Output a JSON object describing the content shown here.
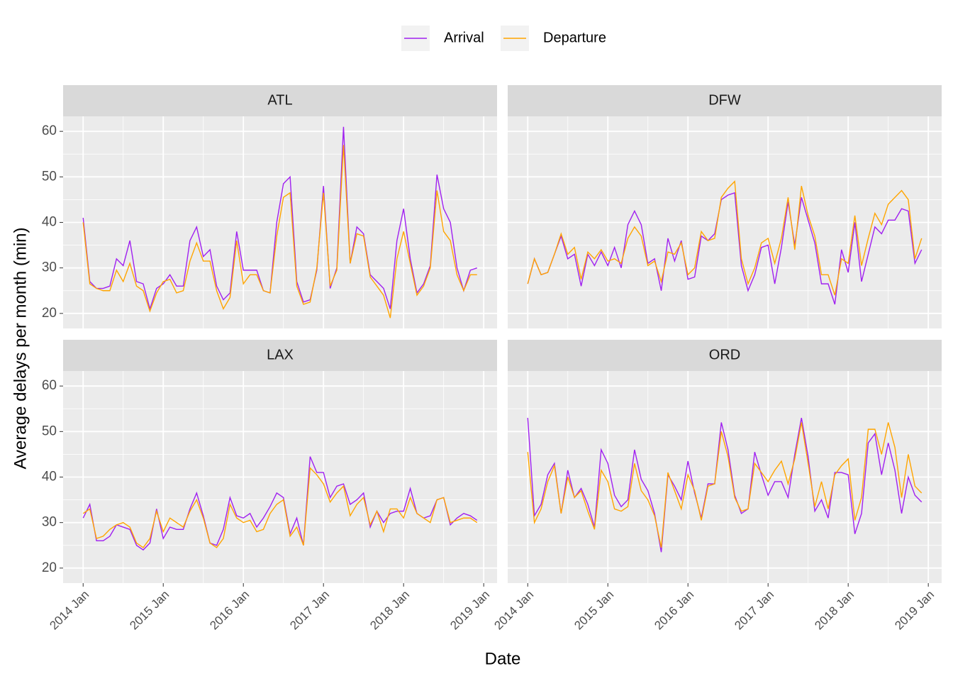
{
  "chart_data": {
    "type": "line",
    "xlabel": "Date",
    "ylabel": "Average delays per month (min)",
    "legend_position": "top",
    "grid": true,
    "x": [
      "2014-01",
      "2014-02",
      "2014-03",
      "2014-04",
      "2014-05",
      "2014-06",
      "2014-07",
      "2014-08",
      "2014-09",
      "2014-10",
      "2014-11",
      "2014-12",
      "2015-01",
      "2015-02",
      "2015-03",
      "2015-04",
      "2015-05",
      "2015-06",
      "2015-07",
      "2015-08",
      "2015-09",
      "2015-10",
      "2015-11",
      "2015-12",
      "2016-01",
      "2016-02",
      "2016-03",
      "2016-04",
      "2016-05",
      "2016-06",
      "2016-07",
      "2016-08",
      "2016-09",
      "2016-10",
      "2016-11",
      "2016-12",
      "2017-01",
      "2017-02",
      "2017-03",
      "2017-04",
      "2017-05",
      "2017-06",
      "2017-07",
      "2017-08",
      "2017-09",
      "2017-10",
      "2017-11",
      "2017-12",
      "2018-01",
      "2018-02",
      "2018-03",
      "2018-04",
      "2018-05",
      "2018-06",
      "2018-07",
      "2018-08",
      "2018-09",
      "2018-10",
      "2018-11",
      "2018-12"
    ],
    "xlim": [
      "2013-10",
      "2019-03"
    ],
    "xticks": [
      {
        "value": "2014-01",
        "label": "2014 Jan"
      },
      {
        "value": "2015-01",
        "label": "2015 Jan"
      },
      {
        "value": "2016-01",
        "label": "2016 Jan"
      },
      {
        "value": "2017-01",
        "label": "2017 Jan"
      },
      {
        "value": "2018-01",
        "label": "2018 Jan"
      },
      {
        "value": "2019-01",
        "label": "2019 Jan"
      }
    ],
    "minor_xticks": [
      "2014-07",
      "2015-07",
      "2016-07",
      "2017-07",
      "2018-07"
    ],
    "ylim": [
      16.7,
      63.3
    ],
    "yticks": [
      20,
      30,
      40,
      50,
      60
    ],
    "minor_yticks": [
      25,
      35,
      45,
      55
    ],
    "facets": [
      {
        "title": "ATL",
        "series": [
          {
            "name": "Arrival",
            "color": "#a020f0",
            "values": [
              41,
              27,
              25.5,
              25.5,
              26,
              32,
              30.5,
              36,
              27,
              26.5,
              21,
              25.5,
              26.5,
              28.5,
              26,
              26,
              36,
              39,
              32.5,
              34,
              26,
              23,
              24.5,
              38,
              29.5,
              29.5,
              29.5,
              25,
              24.5,
              40,
              48.5,
              50,
              27,
              22.5,
              23,
              29.5,
              48,
              25.5,
              30,
              61,
              31,
              39,
              37.5,
              28.5,
              27,
              25.5,
              21,
              36,
              43,
              32,
              24.5,
              26.5,
              30.5,
              50.5,
              43,
              40,
              30,
              25,
              29.5,
              30
            ]
          },
          {
            "name": "Departure",
            "color": "#ffa500",
            "values": [
              40,
              26.5,
              25.5,
              25,
              25,
              29.5,
              27,
              31,
              26,
              25,
              20.5,
              24.5,
              27,
              27.5,
              24.5,
              25,
              31.5,
              35.5,
              31.5,
              31.5,
              25,
              21,
              23.5,
              36,
              26.5,
              28.5,
              28.5,
              25,
              24.5,
              37,
              45.5,
              46.5,
              26,
              22,
              22.5,
              30,
              46.5,
              26,
              29.5,
              57,
              31,
              37.5,
              37,
              28,
              26,
              24,
              19,
              32,
              38,
              31,
              24,
              26,
              30,
              47,
              38,
              36,
              28.5,
              25,
              28.5,
              28.5
            ]
          }
        ]
      },
      {
        "title": "DFW",
        "series": [
          {
            "name": "Arrival",
            "color": "#a020f0",
            "values": [
              26.5,
              32,
              28.5,
              29,
              33,
              37,
              32,
              33,
              26,
              33,
              30.5,
              33.5,
              30.5,
              34.5,
              30,
              39.5,
              42.5,
              39.5,
              31,
              32,
              25,
              36.5,
              31.5,
              36,
              27.5,
              28,
              37,
              36,
              37.5,
              45,
              46,
              46.5,
              30.5,
              25,
              28.5,
              34.5,
              35,
              26.5,
              34.5,
              44.5,
              35,
              45.5,
              40.5,
              35.5,
              26.5,
              26.5,
              22,
              34,
              29,
              40,
              27,
              33,
              39,
              37.5,
              40.5,
              40.5,
              43,
              42.5,
              31,
              34
            ]
          },
          {
            "name": "Departure",
            "color": "#ffa500",
            "values": [
              26.5,
              32,
              28.5,
              29,
              33,
              37.5,
              33,
              34.5,
              27.5,
              33.5,
              32,
              34,
              31.5,
              32,
              31,
              36.5,
              39,
              37,
              30.5,
              31.5,
              27,
              33.5,
              33,
              35.5,
              28.5,
              30,
              38,
              36,
              36.5,
              45.5,
              47.5,
              49,
              32,
              26.5,
              30,
              35.5,
              36.5,
              31,
              36.5,
              45.5,
              34,
              48,
              41.5,
              37,
              28.5,
              28.5,
              24,
              32,
              31,
              41.5,
              30.5,
              36.5,
              42,
              39.5,
              44,
              45.5,
              47,
              45,
              32,
              36.5
            ]
          }
        ]
      },
      {
        "title": "LAX",
        "series": [
          {
            "name": "Arrival",
            "color": "#a020f0",
            "values": [
              31,
              34,
              26,
              26,
              27,
              29.5,
              29,
              28.5,
              25,
              24,
              25.5,
              33,
              26.5,
              29,
              28.5,
              28.5,
              33,
              36.5,
              31.5,
              25.5,
              25,
              28.5,
              35.5,
              31.5,
              31,
              32,
              29,
              31,
              33.5,
              36.5,
              35.5,
              27.5,
              31,
              25,
              44.5,
              41,
              41,
              35.5,
              38,
              38.5,
              34,
              35,
              36.5,
              29,
              32.5,
              30,
              32,
              32.5,
              32.5,
              37.5,
              32,
              31,
              31.5,
              35,
              35.5,
              29.5,
              31,
              32,
              31.5,
              30.5
            ]
          },
          {
            "name": "Departure",
            "color": "#ffa500",
            "values": [
              32,
              33,
              26.5,
              27,
              28.5,
              29.5,
              30,
              29,
              25.5,
              24.5,
              26.5,
              32.5,
              28,
              31,
              30,
              29,
              32.5,
              35,
              31,
              25.5,
              24.5,
              26.5,
              34,
              31,
              30,
              30.5,
              28,
              28.5,
              32,
              34,
              35,
              27,
              29,
              25,
              42,
              40.5,
              38.5,
              34.5,
              36.5,
              38,
              31.5,
              34,
              35.5,
              29.5,
              32.5,
              28,
              33,
              33,
              31,
              35.5,
              32,
              31,
              30,
              35,
              35.5,
              30,
              30.5,
              31,
              31,
              30
            ]
          }
        ]
      },
      {
        "title": "ORD",
        "series": [
          {
            "name": "Arrival",
            "color": "#a020f0",
            "values": [
              53,
              31.5,
              34,
              40.5,
              43,
              32,
              41.5,
              35.5,
              37.5,
              34,
              29,
              46,
              43,
              36,
              33.5,
              35,
              46,
              39.5,
              37,
              32,
              23.5,
              40.5,
              38,
              35,
              43.5,
              36.5,
              31,
              38.5,
              38.5,
              52,
              46,
              36,
              32,
              33,
              45.5,
              40.5,
              36,
              39,
              39,
              35.5,
              45,
              53,
              44.5,
              32.5,
              35,
              31,
              41,
              41,
              40.5,
              27.5,
              32,
              47.5,
              49.5,
              40.5,
              47.5,
              41.5,
              32,
              40,
              36,
              34.5
            ]
          },
          {
            "name": "Departure",
            "color": "#ffa500",
            "values": [
              45.5,
              30,
              33,
              39,
              42.5,
              32,
              40,
              35.5,
              37,
              32.5,
              28.5,
              41.5,
              39,
              33,
              32.5,
              33.5,
              43,
              37,
              35,
              31.5,
              24.5,
              41,
              37,
              33,
              40.5,
              37,
              30.5,
              38,
              38.5,
              50,
              44.5,
              35.5,
              32.5,
              33,
              43,
              41,
              39,
              41.5,
              43.5,
              38.5,
              44,
              52,
              43,
              33.5,
              39,
              33,
              40.5,
              42.5,
              44,
              30.5,
              35.5,
              50.5,
              50.5,
              45,
              52,
              46.5,
              35.5,
              45,
              38,
              36.5
            ]
          }
        ]
      }
    ]
  }
}
